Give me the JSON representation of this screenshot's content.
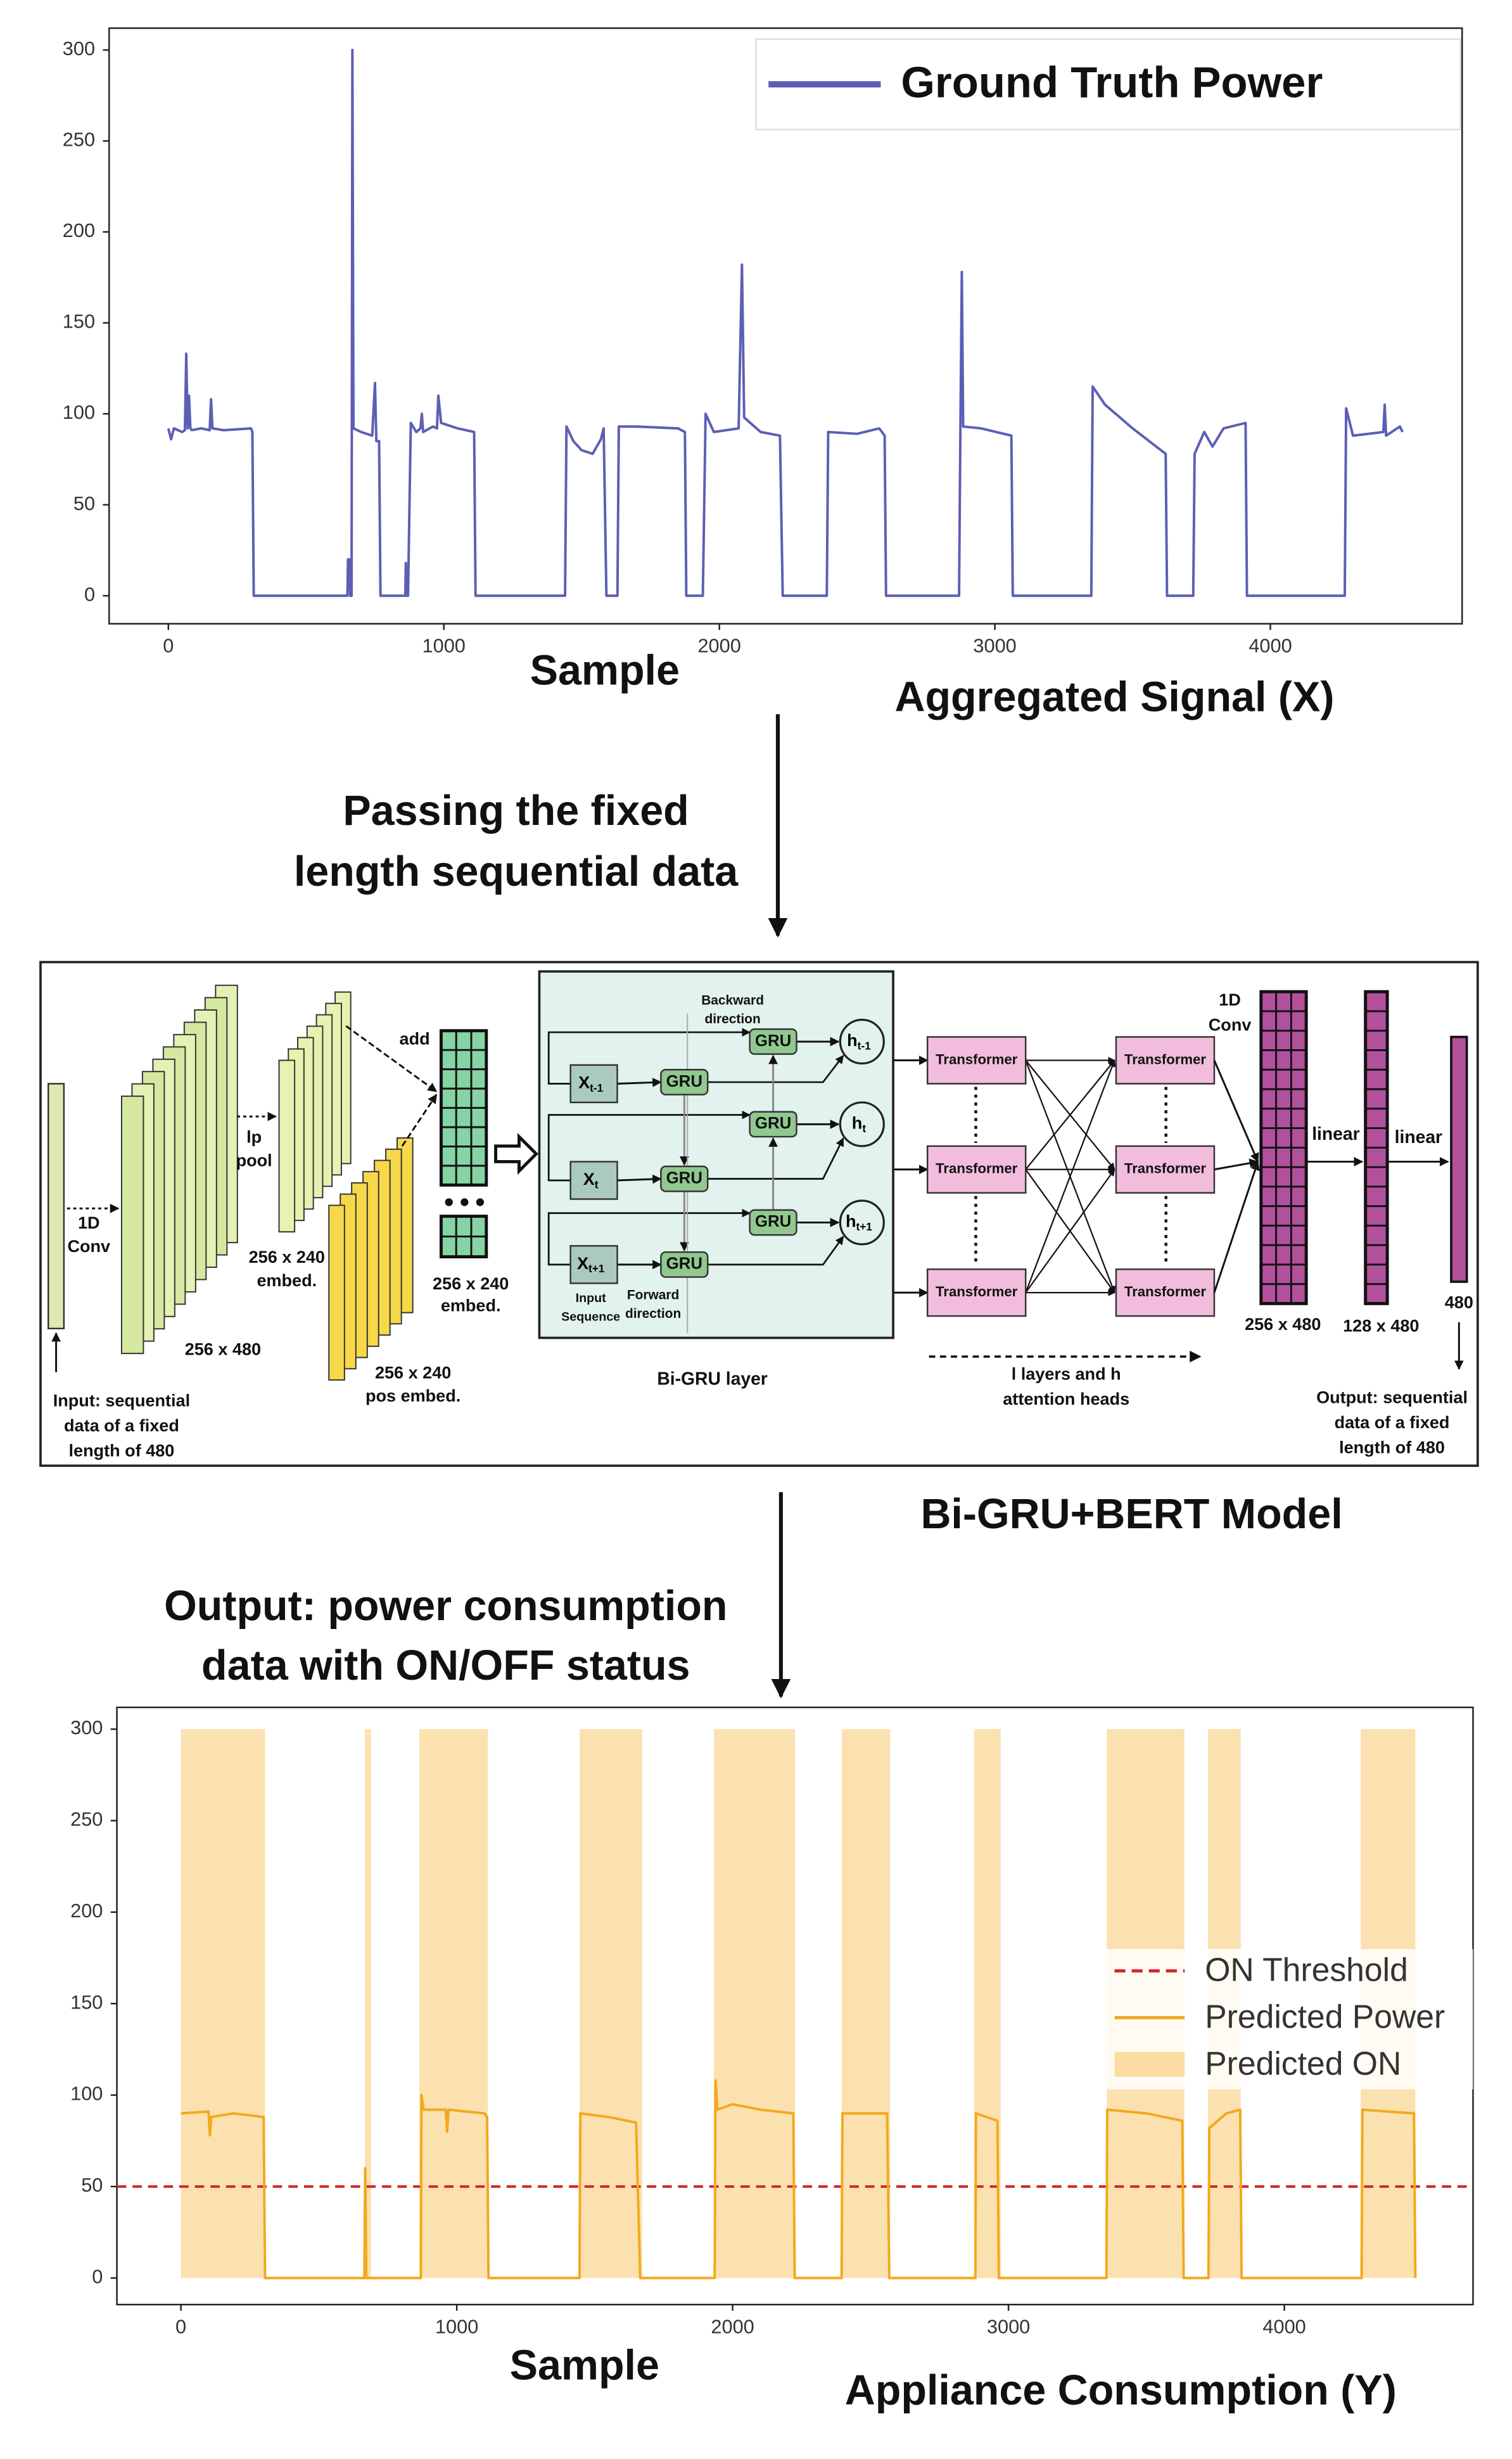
{
  "chart_data": [
    {
      "type": "line",
      "x_label": "Sample",
      "x": [
        0,
        10,
        20,
        50,
        60,
        65,
        70,
        75,
        80,
        85,
        120,
        150,
        155,
        160,
        200,
        300,
        305,
        310,
        650,
        652,
        658,
        660,
        665,
        668,
        672,
        700,
        740,
        750,
        755,
        765,
        770,
        860,
        862,
        865,
        870,
        880,
        900,
        915,
        920,
        925,
        960,
        975,
        980,
        990,
        1050,
        1110,
        1115,
        1440,
        1445,
        1470,
        1500,
        1540,
        1570,
        1580,
        1590,
        1630,
        1635,
        1700,
        1850,
        1875,
        1880,
        1940,
        1950,
        1980,
        2070,
        2082,
        2090,
        2150,
        2220,
        2230,
        2390,
        2395,
        2500,
        2580,
        2600,
        2605,
        2870,
        2875,
        2880,
        2885,
        2950,
        3060,
        3065,
        3350,
        3355,
        3400,
        3500,
        3620,
        3625,
        3720,
        3725,
        3760,
        3790,
        3830,
        3910,
        3915,
        4270,
        4275,
        4300,
        4410,
        4415,
        4420,
        4440,
        4470,
        4480
      ],
      "series": [
        {
          "name": "Ground Truth Power",
          "color": "#5b5fb4",
          "values": [
            92,
            86,
            92,
            90,
            91,
            133,
            92,
            110,
            92,
            91,
            92,
            91,
            108,
            92,
            91,
            92,
            90,
            0,
            0,
            20,
            20,
            0,
            0,
            300,
            92,
            90,
            88,
            117,
            85,
            85,
            0,
            0,
            18,
            0,
            0,
            95,
            90,
            92,
            100,
            90,
            93,
            92,
            110,
            95,
            92,
            90,
            0,
            0,
            93,
            85,
            80,
            78,
            86,
            92,
            0,
            0,
            93,
            93,
            92,
            90,
            0,
            0,
            100,
            90,
            92,
            182,
            98,
            90,
            88,
            0,
            0,
            90,
            89,
            92,
            88,
            0,
            0,
            93,
            178,
            93,
            92,
            88,
            0,
            0,
            115,
            105,
            92,
            78,
            0,
            0,
            78,
            90,
            82,
            92,
            95,
            0,
            0,
            103,
            88,
            90,
            105,
            88,
            90,
            93,
            90
          ]
        }
      ],
      "xlim": [
        -215,
        4696
      ],
      "ylim": [
        -15.4,
        312
      ],
      "xticks": [
        0,
        1000,
        2000,
        3000,
        4000
      ],
      "yticks": [
        0,
        50,
        100,
        150,
        200,
        250,
        300
      ],
      "legend": "upper right"
    },
    {
      "type": "line",
      "x_label": "Sample",
      "x": [
        0,
        100,
        105,
        110,
        190,
        300,
        305,
        665,
        668,
        672,
        870,
        872,
        880,
        960,
        965,
        970,
        1100,
        1110,
        1115,
        1445,
        1448,
        1550,
        1650,
        1665,
        1935,
        1938,
        1945,
        2000,
        2100,
        2220,
        2225,
        2395,
        2398,
        2560,
        2568,
        2880,
        2882,
        2960,
        2965,
        3355,
        3358,
        3500,
        3630,
        3635,
        3725,
        3728,
        3790,
        3840,
        3845,
        4280,
        4283,
        4470,
        4475
      ],
      "series": [
        {
          "name": "Predicted Power",
          "color": "#f2a91c",
          "values": [
            90,
            91,
            78,
            88,
            90,
            88,
            0,
            0,
            60,
            0,
            0,
            100,
            92,
            92,
            80,
            92,
            90,
            88,
            0,
            0,
            90,
            88,
            85,
            0,
            0,
            108,
            92,
            95,
            92,
            90,
            0,
            0,
            90,
            90,
            0,
            0,
            90,
            86,
            0,
            0,
            92,
            90,
            86,
            0,
            0,
            82,
            90,
            92,
            0,
            0,
            92,
            90,
            0
          ]
        }
      ],
      "threshold": {
        "name": "ON Threshold",
        "value": 50,
        "color": "#d62728"
      },
      "spans": {
        "name": "Predicted ON",
        "color": "#fbdca2",
        "top": 300,
        "ranges": [
          [
            0,
            305
          ],
          [
            667,
            689
          ],
          [
            864,
            1113
          ],
          [
            1446,
            1672
          ],
          [
            1932,
            2226
          ],
          [
            2395,
            2571
          ],
          [
            2876,
            2972
          ],
          [
            3356,
            3638
          ],
          [
            3723,
            3842
          ],
          [
            4277,
            4475
          ]
        ]
      },
      "xlim": [
        -232,
        4684
      ],
      "ylim": [
        -14.5,
        311.9
      ],
      "xticks": [
        0,
        1000,
        2000,
        3000,
        4000
      ],
      "yticks": [
        0,
        50,
        100,
        150,
        200,
        250,
        300
      ],
      "legend": "center right"
    }
  ],
  "captions": {
    "input_flow": [
      "Passing the fixed",
      "length sequential data"
    ],
    "input_title": "Aggregated Signal (X)",
    "model_title": "Bi-GRU+BERT Model",
    "output_flow": [
      "Output: power consumption",
      "data with ON/OFF status"
    ],
    "output_title": "Appliance Consumption (Y)"
  },
  "diagram": {
    "input_label": [
      "Input: sequential",
      "data of a fixed",
      "length of 480"
    ],
    "conv1_label": [
      "1D",
      "Conv"
    ],
    "conv1_size": "256 x 480",
    "pool_label": [
      "lp",
      "pool"
    ],
    "embed_size": [
      "256 x 240",
      "embed."
    ],
    "pos_embed_size": [
      "256 x 240",
      "pos embed."
    ],
    "add_label": "add",
    "sum_size": [
      "256 x 240",
      "embed."
    ],
    "bigru": {
      "backward": [
        "Backward",
        "direction"
      ],
      "forward": [
        "Forward",
        "direction"
      ],
      "input_seq": [
        "Input",
        "Sequence"
      ],
      "title": "Bi-GRU layer",
      "gru": [
        "GRU",
        "GRU",
        "GRU",
        "GRU",
        "GRU",
        "GRU"
      ],
      "inputs": [
        {
          "base": "X",
          "sub": "t-1"
        },
        {
          "base": "X",
          "sub": "t"
        },
        {
          "base": "X",
          "sub": "t+1"
        }
      ],
      "outputs": [
        {
          "base": "h",
          "sub": "t-1"
        },
        {
          "base": "h",
          "sub": "t"
        },
        {
          "base": "h",
          "sub": "t+1"
        }
      ]
    },
    "transformers": [
      "Transformer",
      "Transformer",
      "Transformer",
      "Transformer",
      "Transformer",
      "Transformer"
    ],
    "layers_label": [
      "l layers and h",
      "attention heads"
    ],
    "conv2_label": [
      "1D",
      "Conv"
    ],
    "linear": [
      "linear",
      "linear"
    ],
    "sizes": [
      "256 x 480",
      "128 x 480",
      "480"
    ],
    "output_label": [
      "Output: sequential",
      "data of a fixed",
      "length of 480"
    ]
  }
}
